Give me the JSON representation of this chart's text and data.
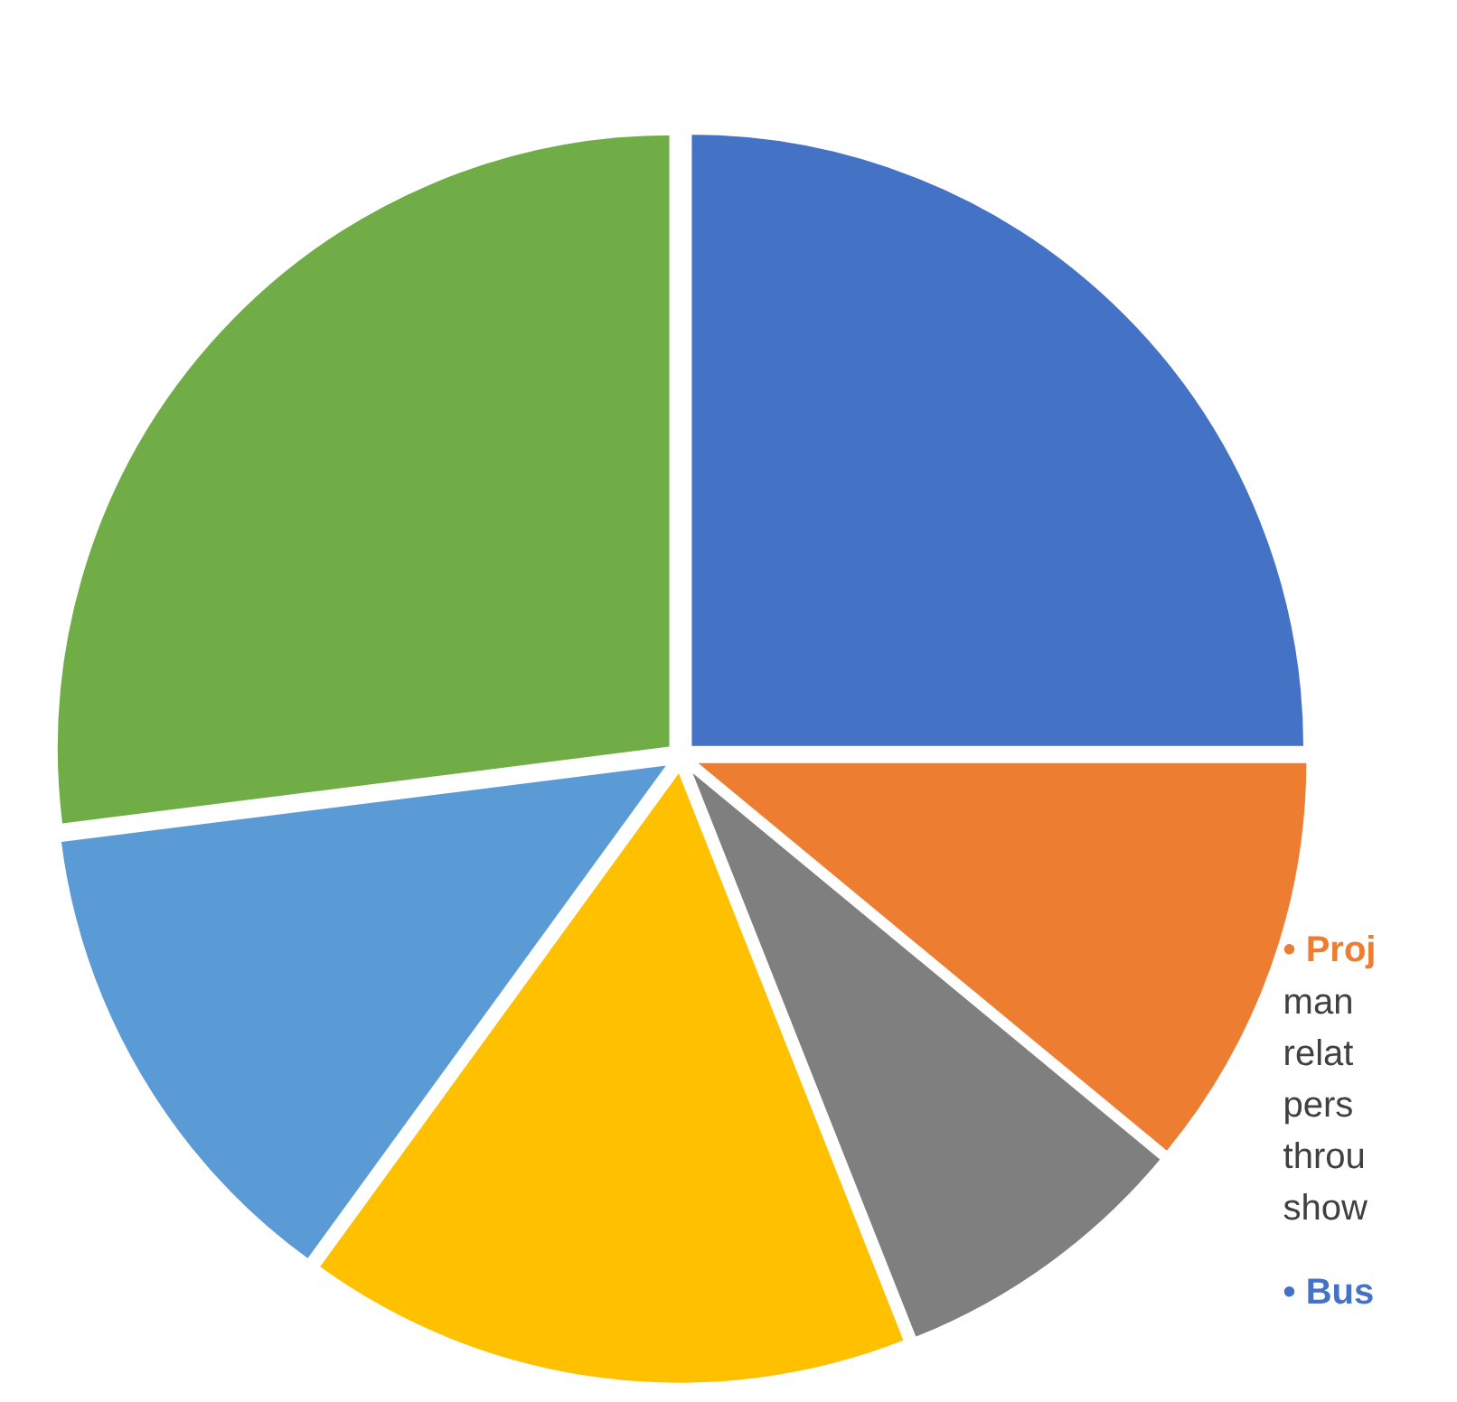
{
  "chart_data": {
    "type": "pie",
    "categories": [
      null,
      null,
      null,
      null,
      null,
      null
    ],
    "values": [
      25,
      11,
      8,
      16,
      13,
      27
    ],
    "colors": [
      "#4472c4",
      "#ed7d31",
      "#7f7f7f",
      "#ffc000",
      "#5b9bd5",
      "#70ad47"
    ],
    "annotations": [
      "• Proj",
      "man",
      "relat",
      "pers",
      "throu",
      "show",
      "• Bus"
    ]
  }
}
